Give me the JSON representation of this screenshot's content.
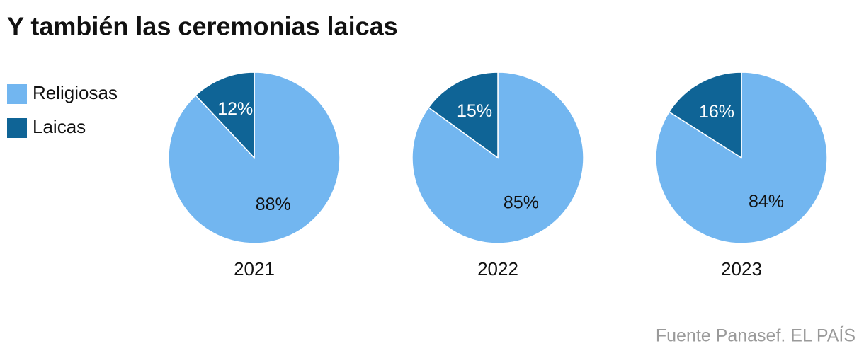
{
  "title": "Y también las ceremonias laicas",
  "source": "Fuente Panasef. EL PAÍS",
  "chart_data": [
    {
      "type": "pie",
      "title": "2021",
      "categories": [
        "Religiosas",
        "Laicas"
      ],
      "values": [
        88,
        12
      ],
      "value_labels": [
        "88%",
        "12%"
      ],
      "colors": [
        "#72b6f0",
        "#0f6496"
      ]
    },
    {
      "type": "pie",
      "title": "2022",
      "categories": [
        "Religiosas",
        "Laicas"
      ],
      "values": [
        85,
        15
      ],
      "value_labels": [
        "85%",
        "15%"
      ],
      "colors": [
        "#72b6f0",
        "#0f6496"
      ]
    },
    {
      "type": "pie",
      "title": "2023",
      "categories": [
        "Religiosas",
        "Laicas"
      ],
      "values": [
        84,
        16
      ],
      "value_labels": [
        "84%",
        "16%"
      ],
      "colors": [
        "#72b6f0",
        "#0f6496"
      ]
    }
  ]
}
